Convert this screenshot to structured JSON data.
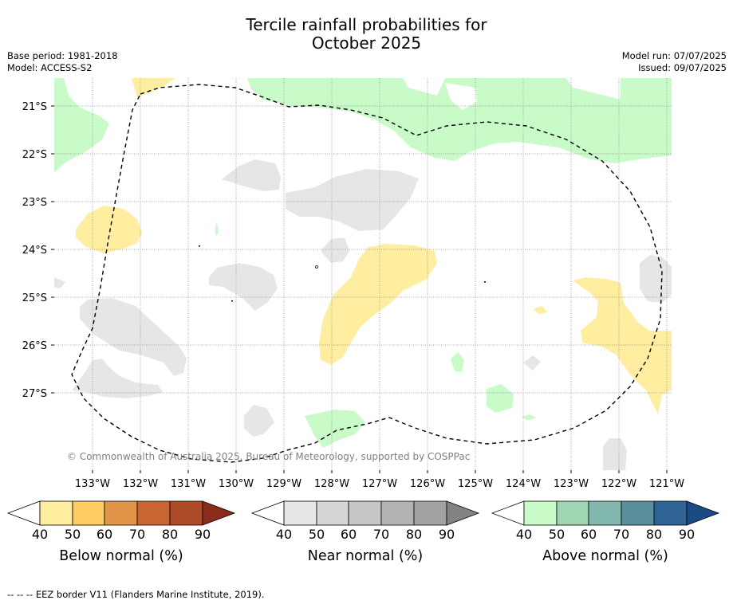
{
  "title_line1": "Tercile rainfall probabilities for",
  "title_line2": "October 2025",
  "meta_left": [
    "Base period: 1981-2018",
    "Model: ACCESS-S2"
  ],
  "meta_right": [
    "Model run: 07/07/2025",
    "Issued: 09/07/2025"
  ],
  "copyright": "© Commonwealth of Australia 2025, Bureau of Meteorology, supported by COSPPac",
  "footnote": "--  --  -- EEZ border V11 (Flanders Marine Institute, 2019).",
  "map": {
    "lat_labels": [
      "21°S",
      "22°S",
      "23°S",
      "24°S",
      "25°S",
      "26°S",
      "27°S"
    ],
    "lon_labels": [
      "133°W",
      "132°W",
      "131°W",
      "130°W",
      "129°W",
      "128°W",
      "127°W",
      "126°W",
      "125°W",
      "124°W",
      "123°W",
      "122°W",
      "121°W"
    ],
    "colors": {
      "below": "#FFEDA0",
      "near": "#E6E6E6",
      "above": "#C8FBC8",
      "border": "#000000"
    }
  },
  "legends": [
    {
      "label": "Below normal (%)",
      "ticks": [
        "40",
        "50",
        "60",
        "70",
        "80",
        "90"
      ],
      "colors": [
        "#FFEDA0",
        "#FECC65",
        "#E09548",
        "#C96533",
        "#AD4A27",
        "#8B2B1A"
      ]
    },
    {
      "label": "Near normal (%)",
      "ticks": [
        "40",
        "50",
        "60",
        "70",
        "80",
        "90"
      ],
      "colors": [
        "#E6E6E6",
        "#D6D6D6",
        "#C6C6C6",
        "#B4B4B4",
        "#A2A2A2",
        "#838383"
      ]
    },
    {
      "label": "Above normal (%)",
      "ticks": [
        "40",
        "50",
        "60",
        "70",
        "80",
        "90"
      ],
      "colors": [
        "#C8FBC8",
        "#A1D6B5",
        "#82B7AF",
        "#5A8F9D",
        "#2F6394",
        "#1C4A84"
      ]
    }
  ]
}
